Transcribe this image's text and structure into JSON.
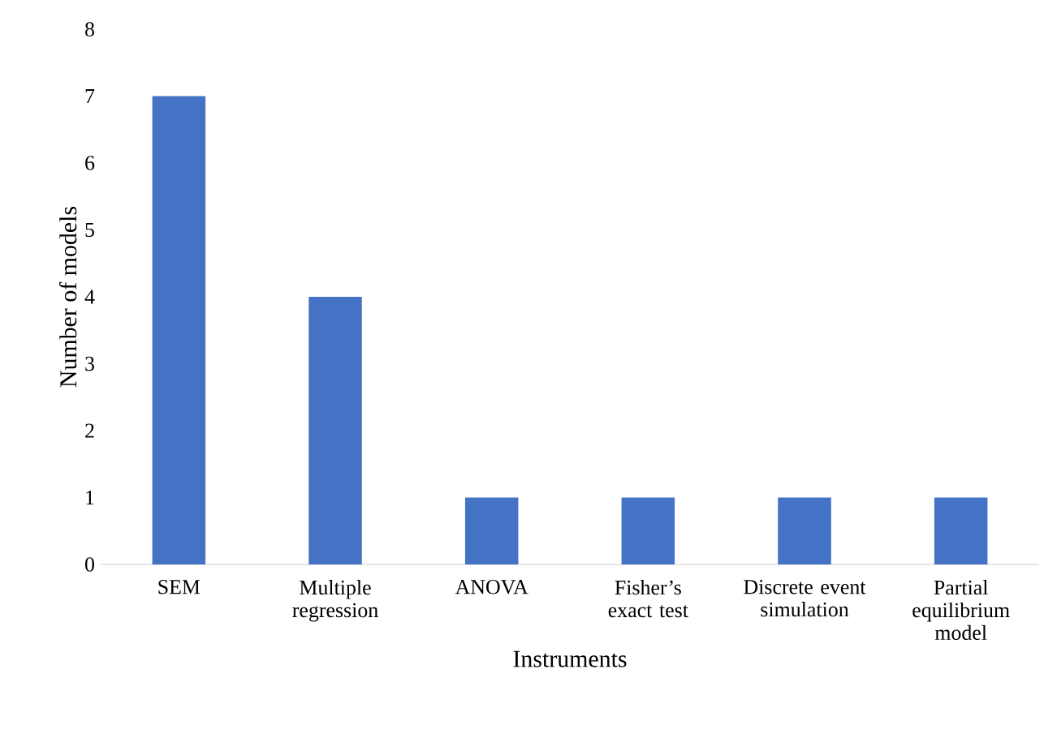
{
  "chart_data": {
    "type": "bar",
    "xlabel": "Instruments",
    "ylabel": "Number of models",
    "categories": [
      "SEM",
      "Multiple regression",
      "ANOVA",
      "Fisher’s exact test",
      "Discrete event simulation",
      "Partial equilibrium model"
    ],
    "values": [
      7,
      4,
      1,
      1,
      1,
      1
    ],
    "color": "#4472c4",
    "ylim": [
      0,
      8
    ],
    "yticks": [
      0,
      1,
      2,
      3,
      4,
      5,
      6,
      7,
      8
    ]
  }
}
